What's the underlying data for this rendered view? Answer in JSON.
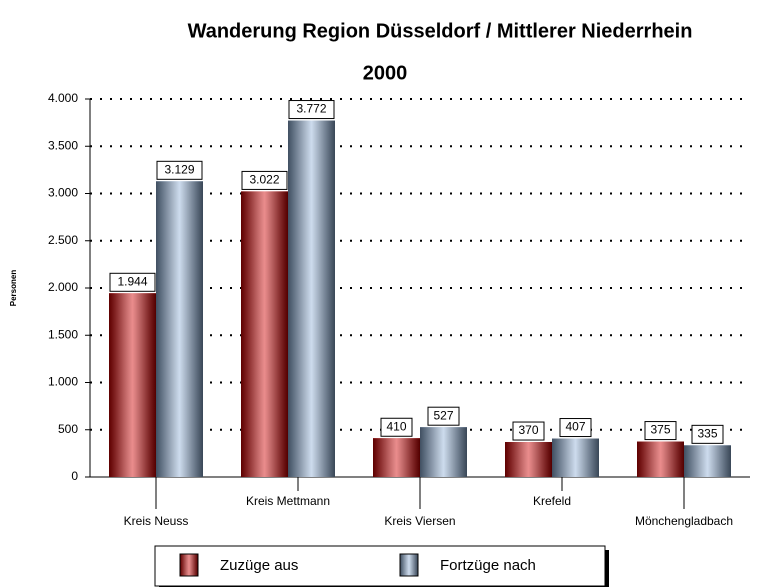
{
  "chart_data": {
    "type": "bar",
    "title": "Wanderung Region Düsseldorf / Mittlerer Niederrhein",
    "subtitle": "2000",
    "y_label": "Personen",
    "categories": [
      "Kreis Neuss",
      "Kreis Mettmann",
      "Kreis Viersen",
      "Krefeld",
      "Mönchengladbach"
    ],
    "series": [
      {
        "name": "Zuzüge aus",
        "color": "#d00000",
        "values": [
          1944,
          3022,
          410,
          370,
          375
        ],
        "value_labels": [
          "1.944",
          "3.022",
          "410",
          "370",
          "375"
        ]
      },
      {
        "name": "Fortzüge nach",
        "color": "#8fb0d8",
        "values": [
          3129,
          3772,
          527,
          407,
          335
        ],
        "value_labels": [
          "3.129",
          "3.772",
          "527",
          "407",
          "335"
        ]
      }
    ],
    "ylim": [
      0,
      4000
    ],
    "yticks": [
      0,
      500,
      {
        "value": 1000,
        "label": "1.000"
      },
      {
        "value": 1500,
        "label": "1.500"
      },
      {
        "value": 2000,
        "label": "2.000"
      },
      {
        "value": 2500,
        "label": "2.500"
      },
      {
        "value": 3000,
        "label": "3.000"
      },
      {
        "value": 3500,
        "label": "3.500"
      },
      {
        "value": 4000,
        "label": "4.000"
      }
    ],
    "grid": true,
    "legend": "bottom"
  }
}
